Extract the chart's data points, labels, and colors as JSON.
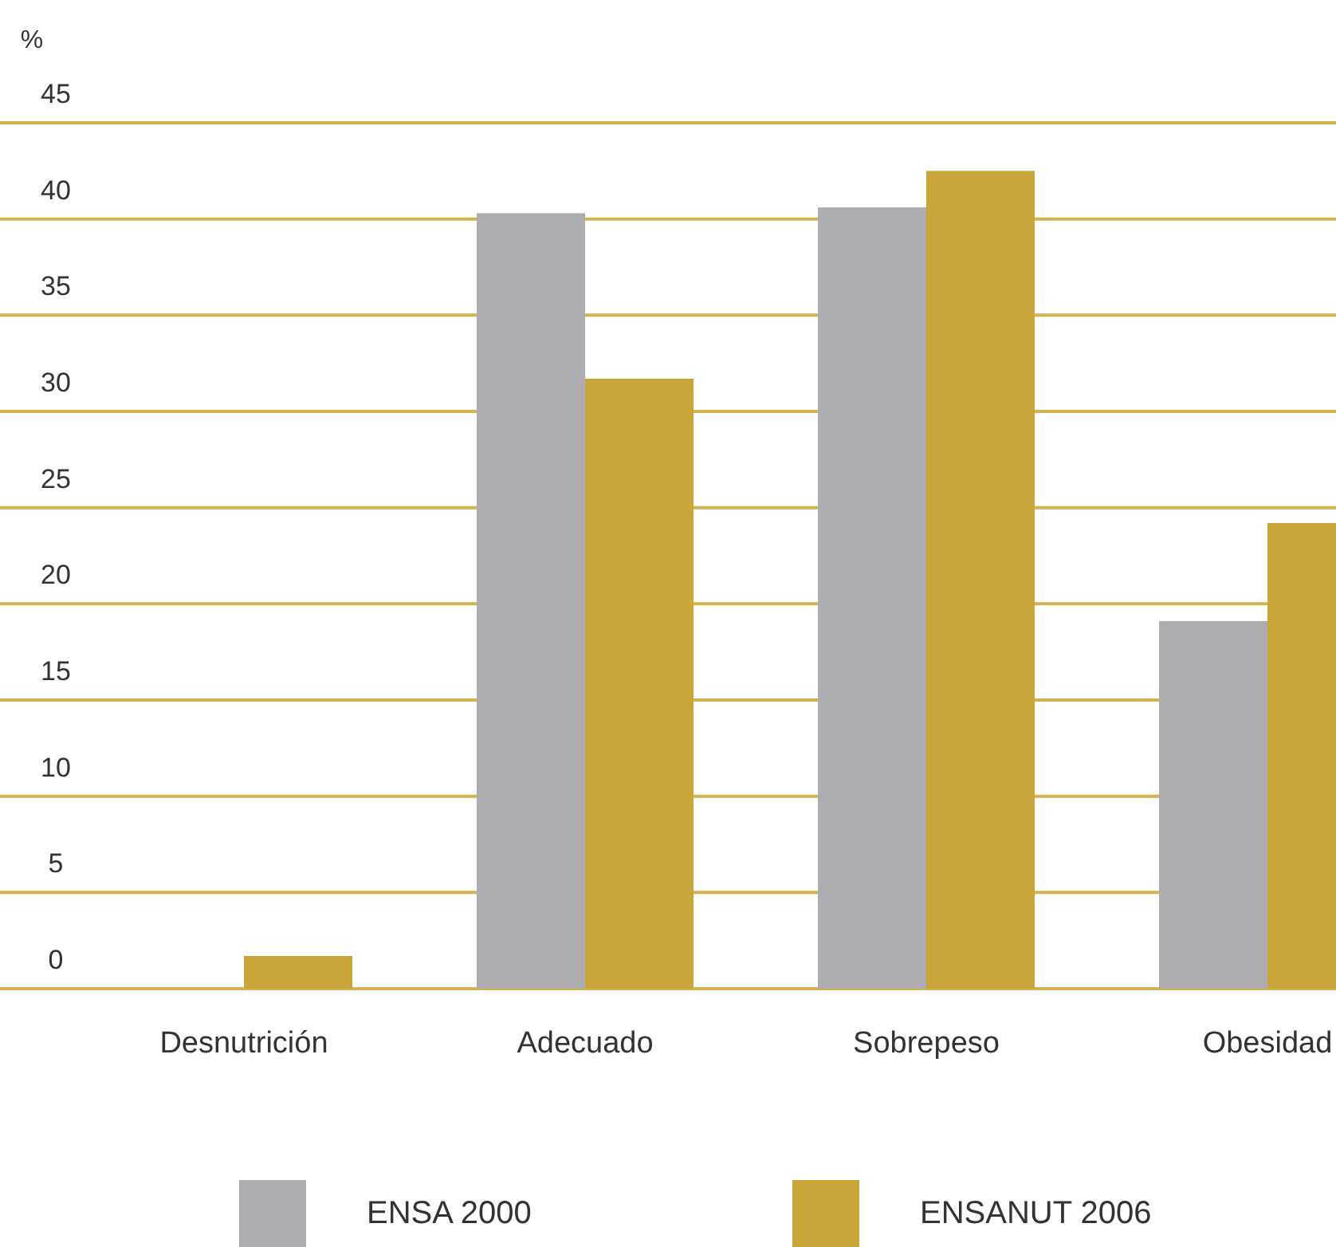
{
  "chart_data": {
    "type": "bar",
    "ylabel": "%",
    "categories": [
      "Desnutrición",
      "Adecuado",
      "Sobrepeso",
      "Obesidad"
    ],
    "series": [
      {
        "name": "ENSA 2000",
        "color": "#adacb1",
        "values": [
          0,
          40.3,
          40.6,
          19.1
        ]
      },
      {
        "name": "ENSANUT 2006",
        "color": "#c9a63a",
        "values": [
          1.7,
          31.7,
          42.5,
          24.2
        ]
      }
    ],
    "ylim": [
      0,
      45
    ],
    "yticks": [
      0,
      5,
      10,
      15,
      20,
      25,
      30,
      35,
      40,
      45
    ],
    "grid": "y",
    "legend": "bottom"
  }
}
